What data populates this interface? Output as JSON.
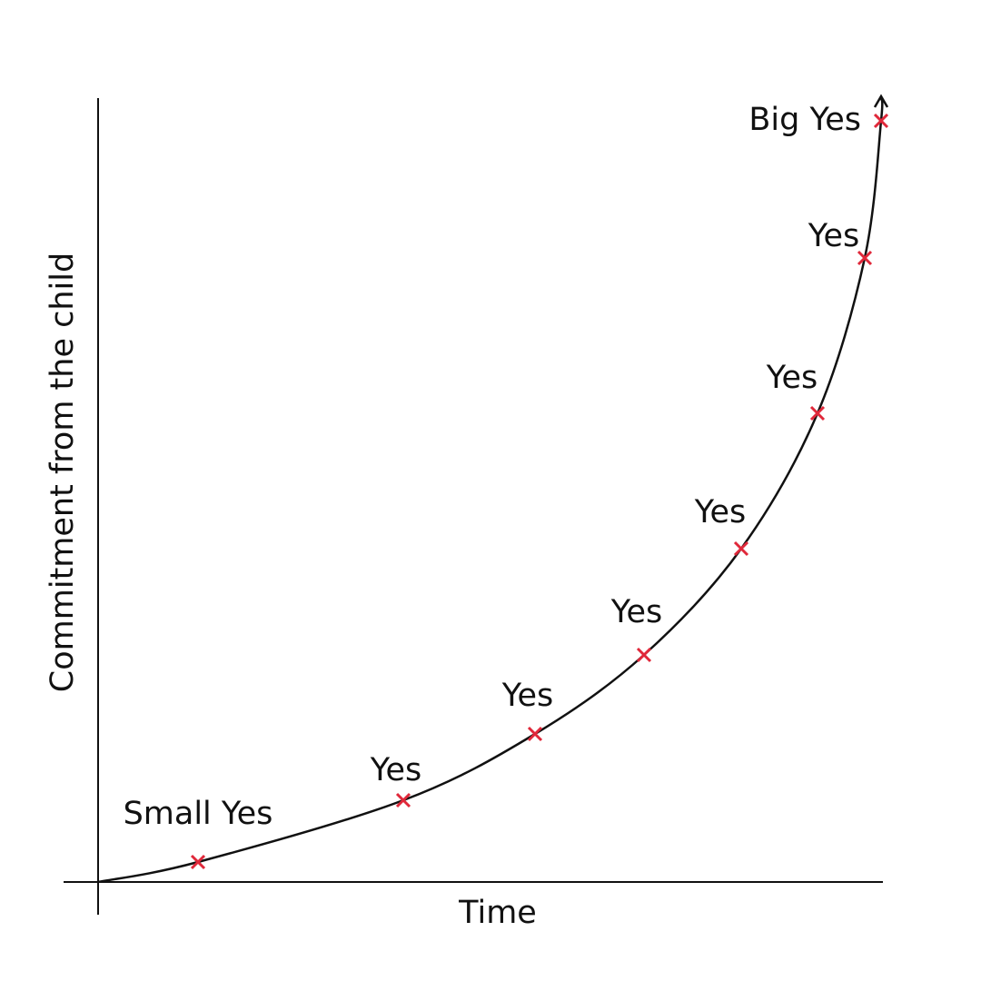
{
  "x_axis_label": "Time",
  "y_axis_label": "Commitment from the child",
  "points": [
    {
      "label": "Small Yes"
    },
    {
      "label": "Yes"
    },
    {
      "label": "Yes"
    },
    {
      "label": "Yes"
    },
    {
      "label": "Yes"
    },
    {
      "label": "Yes"
    },
    {
      "label": "Yes"
    },
    {
      "label": "Big Yes"
    }
  ]
}
